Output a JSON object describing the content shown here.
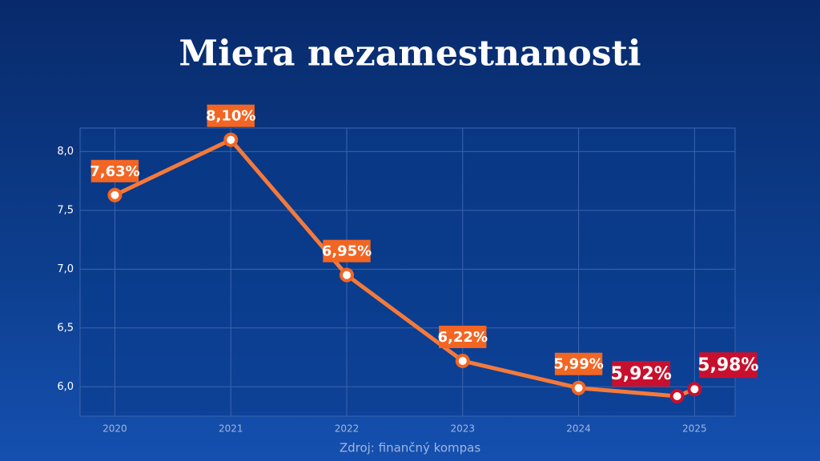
{
  "chart_data": {
    "type": "line",
    "title": "Miera nezamestnanosti",
    "source": "Zdroj: finančný kompas",
    "x": [
      2020,
      2021,
      2022,
      2023,
      2024,
      2024.85,
      2025
    ],
    "series": [
      {
        "color": "#f47a3c",
        "values": [
          7.63,
          8.1,
          6.95,
          6.22,
          5.99,
          5.92,
          5.98
        ],
        "value_labels": [
          "7,63%",
          "8,10%",
          "6,95%",
          "6,22%",
          "5,99%",
          "5,92%",
          "5,98%"
        ],
        "point_colors": [
          "#f26522",
          "#f26522",
          "#f26522",
          "#f26522",
          "#f26522",
          "#c8102e",
          "#c8102e"
        ]
      }
    ],
    "xlim": [
      2019.7,
      2025.35
    ],
    "xticks": [
      2020,
      2021,
      2022,
      2023,
      2024,
      2025
    ],
    "ylim": [
      5.75,
      8.2
    ],
    "yticks": [
      {
        "value": 6.0,
        "label": "6,0"
      },
      {
        "value": 6.5,
        "label": "6,5"
      },
      {
        "value": 7.0,
        "label": "7,0"
      },
      {
        "value": 7.5,
        "label": "7,5"
      },
      {
        "value": 8.0,
        "label": "8,0"
      }
    ],
    "grid": true
  }
}
